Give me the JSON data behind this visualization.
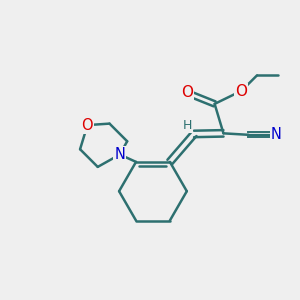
{
  "background_color": "#efefef",
  "bond_color": "#2d7070",
  "bond_width": 1.8,
  "atom_colors": {
    "O": "#dd0000",
    "N": "#0000cc",
    "C": "#2d7070",
    "H": "#2d7070"
  },
  "font_size": 9.5,
  "fig_width": 3.0,
  "fig_height": 3.0
}
